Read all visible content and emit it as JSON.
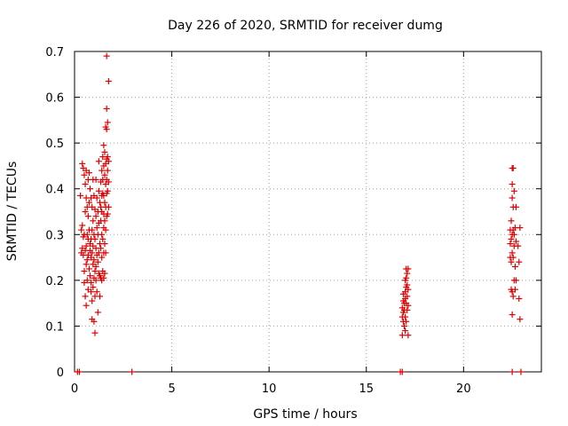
{
  "chart_data": {
    "type": "scatter",
    "title": "Day 226 of 2020, SRMTID for receiver dumg",
    "xlabel": "GPS time / hours",
    "ylabel": "SRMTID / TECUs",
    "xlim": [
      0,
      24
    ],
    "ylim": [
      0,
      0.7
    ],
    "xticks": [
      0,
      5,
      10,
      15,
      20
    ],
    "yticks": [
      0,
      0.1,
      0.2,
      0.3,
      0.4,
      0.5,
      0.6,
      0.7
    ],
    "xtick_labels": [
      "0",
      "5",
      "10",
      "15",
      "20"
    ],
    "ytick_labels": [
      "0",
      "0.1",
      "0.2",
      "0.3",
      "0.4",
      "0.5",
      "0.6",
      "0.7"
    ],
    "grid": true,
    "legend": "none",
    "marker": "plus",
    "color": "#dd0000",
    "series": [
      {
        "points": [
          [
            0.15,
            0.0
          ],
          [
            0.25,
            0.0
          ],
          [
            2.95,
            0.0
          ],
          [
            16.75,
            0.0
          ],
          [
            16.85,
            0.0
          ],
          [
            22.5,
            0.0
          ],
          [
            22.95,
            0.0
          ],
          [
            0.3,
            0.385
          ],
          [
            0.35,
            0.31
          ],
          [
            0.35,
            0.26
          ],
          [
            0.4,
            0.455
          ],
          [
            0.4,
            0.32
          ],
          [
            0.4,
            0.27
          ],
          [
            0.45,
            0.445
          ],
          [
            0.45,
            0.295
          ],
          [
            0.45,
            0.255
          ],
          [
            0.5,
            0.43
          ],
          [
            0.5,
            0.3
          ],
          [
            0.5,
            0.22
          ],
          [
            0.5,
            0.195
          ],
          [
            0.55,
            0.41
          ],
          [
            0.55,
            0.35
          ],
          [
            0.55,
            0.265
          ],
          [
            0.55,
            0.165
          ],
          [
            0.6,
            0.44
          ],
          [
            0.6,
            0.38
          ],
          [
            0.6,
            0.275
          ],
          [
            0.6,
            0.235
          ],
          [
            0.6,
            0.145
          ],
          [
            0.65,
            0.36
          ],
          [
            0.65,
            0.3
          ],
          [
            0.65,
            0.245
          ],
          [
            0.65,
            0.2
          ],
          [
            0.7,
            0.42
          ],
          [
            0.7,
            0.34
          ],
          [
            0.7,
            0.29
          ],
          [
            0.7,
            0.255
          ],
          [
            0.7,
            0.18
          ],
          [
            0.75,
            0.435
          ],
          [
            0.75,
            0.37
          ],
          [
            0.75,
            0.31
          ],
          [
            0.75,
            0.225
          ],
          [
            0.8,
            0.4
          ],
          [
            0.8,
            0.28
          ],
          [
            0.8,
            0.265
          ],
          [
            0.8,
            0.21
          ],
          [
            0.85,
            0.38
          ],
          [
            0.85,
            0.29
          ],
          [
            0.85,
            0.25
          ],
          [
            0.85,
            0.195
          ],
          [
            0.85,
            0.175
          ],
          [
            0.9,
            0.36
          ],
          [
            0.9,
            0.31
          ],
          [
            0.9,
            0.26
          ],
          [
            0.9,
            0.155
          ],
          [
            0.9,
            0.115
          ],
          [
            0.95,
            0.42
          ],
          [
            0.95,
            0.33
          ],
          [
            0.95,
            0.275
          ],
          [
            0.95,
            0.235
          ],
          [
            0.95,
            0.185
          ],
          [
            1.0,
            0.385
          ],
          [
            1.0,
            0.3
          ],
          [
            1.0,
            0.245
          ],
          [
            1.0,
            0.205
          ],
          [
            1.0,
            0.11
          ],
          [
            1.05,
            0.355
          ],
          [
            1.05,
            0.29
          ],
          [
            1.05,
            0.22
          ],
          [
            1.05,
            0.165
          ],
          [
            1.05,
            0.085
          ],
          [
            1.1,
            0.42
          ],
          [
            1.1,
            0.34
          ],
          [
            1.1,
            0.27
          ],
          [
            1.1,
            0.23
          ],
          [
            1.1,
            0.2
          ],
          [
            1.15,
            0.38
          ],
          [
            1.15,
            0.315
          ],
          [
            1.15,
            0.255
          ],
          [
            1.15,
            0.175
          ],
          [
            1.2,
            0.35
          ],
          [
            1.2,
            0.3
          ],
          [
            1.2,
            0.24
          ],
          [
            1.2,
            0.13
          ],
          [
            1.25,
            0.46
          ],
          [
            1.25,
            0.395
          ],
          [
            1.25,
            0.325
          ],
          [
            1.25,
            0.26
          ],
          [
            1.25,
            0.215
          ],
          [
            1.3,
            0.37
          ],
          [
            1.3,
            0.28
          ],
          [
            1.3,
            0.21
          ],
          [
            1.3,
            0.165
          ],
          [
            1.35,
            0.415
          ],
          [
            1.35,
            0.36
          ],
          [
            1.35,
            0.33
          ],
          [
            1.35,
            0.27
          ],
          [
            1.35,
            0.205
          ],
          [
            1.4,
            0.44
          ],
          [
            1.4,
            0.385
          ],
          [
            1.4,
            0.35
          ],
          [
            1.4,
            0.3
          ],
          [
            1.4,
            0.25
          ],
          [
            1.4,
            0.2
          ],
          [
            1.45,
            0.47
          ],
          [
            1.45,
            0.42
          ],
          [
            1.45,
            0.39
          ],
          [
            1.45,
            0.29
          ],
          [
            1.45,
            0.22
          ],
          [
            1.5,
            0.495
          ],
          [
            1.5,
            0.45
          ],
          [
            1.5,
            0.385
          ],
          [
            1.5,
            0.345
          ],
          [
            1.5,
            0.315
          ],
          [
            1.5,
            0.26
          ],
          [
            1.5,
            0.205
          ],
          [
            1.55,
            0.48
          ],
          [
            1.55,
            0.43
          ],
          [
            1.55,
            0.37
          ],
          [
            1.55,
            0.33
          ],
          [
            1.55,
            0.28
          ],
          [
            1.55,
            0.215
          ],
          [
            1.6,
            0.535
          ],
          [
            1.6,
            0.455
          ],
          [
            1.6,
            0.41
          ],
          [
            1.6,
            0.36
          ],
          [
            1.6,
            0.31
          ],
          [
            1.6,
            0.26
          ],
          [
            1.65,
            0.69
          ],
          [
            1.65,
            0.575
          ],
          [
            1.65,
            0.53
          ],
          [
            1.65,
            0.465
          ],
          [
            1.65,
            0.42
          ],
          [
            1.65,
            0.39
          ],
          [
            1.65,
            0.34
          ],
          [
            1.7,
            0.545
          ],
          [
            1.7,
            0.47
          ],
          [
            1.7,
            0.44
          ],
          [
            1.7,
            0.395
          ],
          [
            1.7,
            0.345
          ],
          [
            1.75,
            0.635
          ],
          [
            1.75,
            0.46
          ],
          [
            1.75,
            0.415
          ],
          [
            1.75,
            0.36
          ],
          [
            16.85,
            0.14
          ],
          [
            16.85,
            0.12
          ],
          [
            16.85,
            0.08
          ],
          [
            16.9,
            0.17
          ],
          [
            16.9,
            0.155
          ],
          [
            16.9,
            0.13
          ],
          [
            16.9,
            0.11
          ],
          [
            16.95,
            0.15
          ],
          [
            16.95,
            0.135
          ],
          [
            16.95,
            0.1
          ],
          [
            17.0,
            0.2
          ],
          [
            17.0,
            0.175
          ],
          [
            17.0,
            0.16
          ],
          [
            17.0,
            0.12
          ],
          [
            17.0,
            0.09
          ],
          [
            17.05,
            0.225
          ],
          [
            17.05,
            0.205
          ],
          [
            17.05,
            0.185
          ],
          [
            17.05,
            0.15
          ],
          [
            17.05,
            0.11
          ],
          [
            17.1,
            0.215
          ],
          [
            17.1,
            0.19
          ],
          [
            17.1,
            0.165
          ],
          [
            17.1,
            0.135
          ],
          [
            17.15,
            0.225
          ],
          [
            17.15,
            0.18
          ],
          [
            17.15,
            0.145
          ],
          [
            17.15,
            0.08
          ],
          [
            22.4,
            0.31
          ],
          [
            22.4,
            0.28
          ],
          [
            22.4,
            0.25
          ],
          [
            22.45,
            0.33
          ],
          [
            22.45,
            0.29
          ],
          [
            22.45,
            0.24
          ],
          [
            22.45,
            0.18
          ],
          [
            22.5,
            0.445
          ],
          [
            22.5,
            0.41
          ],
          [
            22.5,
            0.38
          ],
          [
            22.5,
            0.3
          ],
          [
            22.5,
            0.26
          ],
          [
            22.5,
            0.175
          ],
          [
            22.5,
            0.125
          ],
          [
            22.55,
            0.445
          ],
          [
            22.55,
            0.36
          ],
          [
            22.55,
            0.31
          ],
          [
            22.55,
            0.25
          ],
          [
            22.55,
            0.165
          ],
          [
            22.6,
            0.395
          ],
          [
            22.6,
            0.3
          ],
          [
            22.6,
            0.275
          ],
          [
            22.6,
            0.2
          ],
          [
            22.65,
            0.315
          ],
          [
            22.65,
            0.23
          ],
          [
            22.65,
            0.18
          ],
          [
            22.7,
            0.36
          ],
          [
            22.7,
            0.285
          ],
          [
            22.7,
            0.2
          ],
          [
            22.8,
            0.275
          ],
          [
            22.85,
            0.24
          ],
          [
            22.85,
            0.16
          ],
          [
            22.9,
            0.315
          ],
          [
            22.9,
            0.115
          ]
        ]
      }
    ]
  }
}
